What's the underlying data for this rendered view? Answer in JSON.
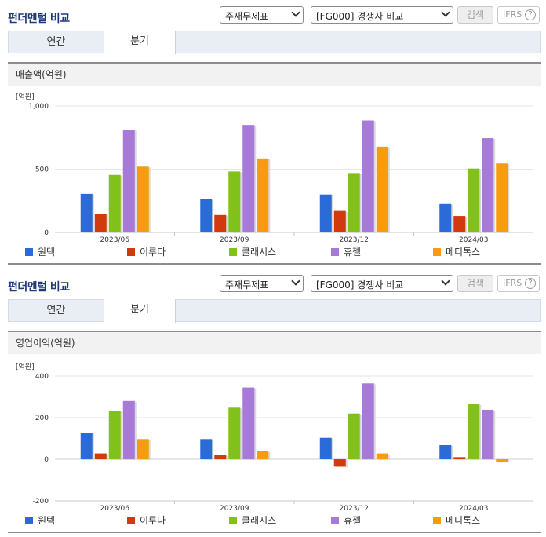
{
  "colors": {
    "series": [
      "#2b6bd8",
      "#d23a0e",
      "#82c11c",
      "#a77ad9",
      "#f79b0f"
    ]
  },
  "panels": [
    {
      "title": "펀더멘털 비교",
      "select_type": "주재무제표",
      "select_compare": "[FG000] 경쟁사 비교",
      "search_label": "검색",
      "ifrs_label": "IFRS",
      "help_label": "?",
      "tab_annual": "연간",
      "tab_quarter": "분기",
      "section_title": "매출액(억원)",
      "chart_data": {
        "type": "bar",
        "unit_label": "[억원]",
        "categories": [
          "2023/06",
          "2023/09",
          "2023/12",
          "2024/03"
        ],
        "yticks": [
          "1,000",
          "500",
          "0"
        ],
        "ylim": [
          0,
          1000
        ],
        "series": [
          {
            "name": "원텍",
            "values": [
              305,
              262,
              300,
              225
            ]
          },
          {
            "name": "이루다",
            "values": [
              145,
              138,
              170,
              130
            ]
          },
          {
            "name": "클래시스",
            "values": [
              455,
              482,
              470,
              505
            ]
          },
          {
            "name": "휴젤",
            "values": [
              812,
              850,
              885,
              745
            ]
          },
          {
            "name": "메디톡스",
            "values": [
              520,
              585,
              678,
              545
            ]
          }
        ]
      }
    },
    {
      "title": "펀더멘털 비교",
      "select_type": "주재무제표",
      "select_compare": "[FG000] 경쟁사 비교",
      "search_label": "검색",
      "ifrs_label": "IFRS",
      "help_label": "?",
      "tab_annual": "연간",
      "tab_quarter": "분기",
      "section_title": "영업이익(억원)",
      "chart_data": {
        "type": "bar",
        "unit_label": "[억원]",
        "categories": [
          "2023/06",
          "2023/09",
          "2023/12",
          "2024/03"
        ],
        "yticks": [
          "400",
          "200",
          "0",
          "-200"
        ],
        "ylim": [
          -200,
          400
        ],
        "series": [
          {
            "name": "원텍",
            "values": [
              128,
              97,
              103,
              68
            ]
          },
          {
            "name": "이루다",
            "values": [
              28,
              20,
              -35,
              10
            ]
          },
          {
            "name": "클래시스",
            "values": [
              232,
              248,
              220,
              265
            ]
          },
          {
            "name": "휴젤",
            "values": [
              280,
              345,
              365,
              238
            ]
          },
          {
            "name": "메디톡스",
            "values": [
              97,
              38,
              28,
              -12
            ]
          }
        ]
      }
    }
  ]
}
